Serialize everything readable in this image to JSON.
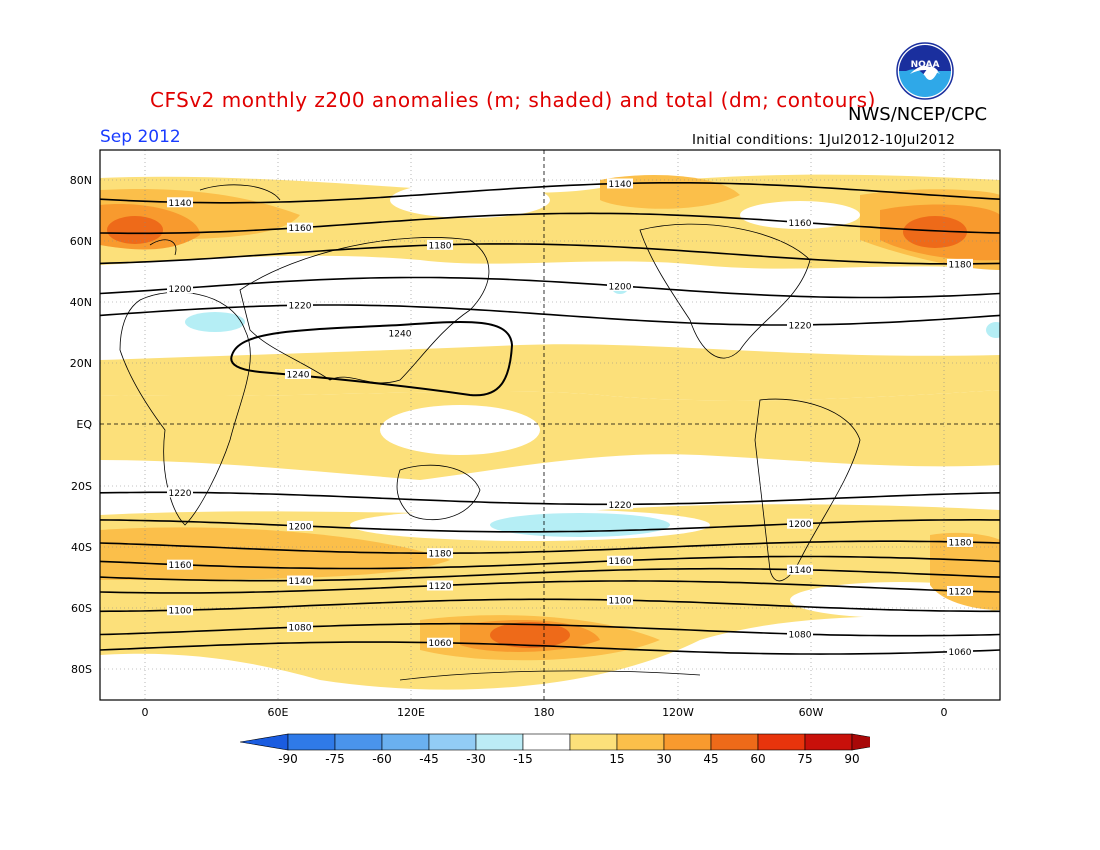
{
  "header": {
    "title": "CFSv2 monthly z200 anomalies (m; shaded) and total (dm; contours)",
    "credit": "NWS/NCEP/CPC",
    "month": "Sep 2012",
    "initial_conditions": "Initial conditions: 1Jul2012-10Jul2012"
  },
  "logo": {
    "icon": "noaa-logo-icon",
    "text": "NOAA",
    "colors": [
      "#1a2f9e",
      "#2fa8e8",
      "#ffffff"
    ]
  },
  "map": {
    "lat_labels": [
      "80N",
      "60N",
      "40N",
      "20N",
      "EQ",
      "20S",
      "40S",
      "60S",
      "80S"
    ],
    "lon_labels": [
      "0",
      "60E",
      "120E",
      "180",
      "120W",
      "60W",
      "0"
    ],
    "contours": [
      {
        "label": "1140",
        "lat": 76
      },
      {
        "label": "1160",
        "lat": 66
      },
      {
        "label": "1180",
        "lat": 56
      },
      {
        "label": "1200",
        "lat": 45
      },
      {
        "label": "1220",
        "lat": 36
      },
      {
        "label": "1240",
        "lat": 23
      },
      {
        "label": "1220",
        "lat": -24
      },
      {
        "label": "1200",
        "lat": -33
      },
      {
        "label": "1180",
        "lat": -40
      },
      {
        "label": "1160",
        "lat": -45
      },
      {
        "label": "1140",
        "lat": -49
      },
      {
        "label": "1120",
        "lat": -53
      },
      {
        "label": "1100",
        "lat": -59
      },
      {
        "label": "1080",
        "lat": -67
      },
      {
        "label": "1060",
        "lat": -73
      }
    ],
    "colors": {
      "c15": "#fce07a",
      "c30": "#fbbf4a",
      "c45": "#f89a2e",
      "c60": "#ee6a19",
      "c75": "#e8340c",
      "neg15": "#b5eef5"
    }
  },
  "colorbar": {
    "ticks": [
      "-90",
      "-75",
      "-60",
      "-45",
      "-30",
      "-15",
      "15",
      "30",
      "45",
      "60",
      "75",
      "90"
    ],
    "colors": [
      "#1a5ce0",
      "#2f7ae8",
      "#4a94ec",
      "#6ab0f0",
      "#92ccf5",
      "#bcecf6",
      "#ffffff",
      "#fce07a",
      "#fbbf4a",
      "#f89a2e",
      "#ee6a19",
      "#e8340c",
      "#c8100a",
      "#a80808"
    ]
  }
}
